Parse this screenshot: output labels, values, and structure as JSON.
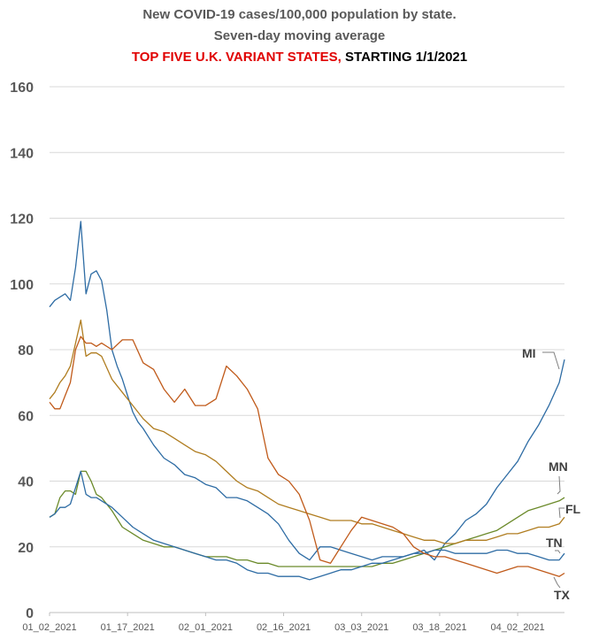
{
  "chart_data": {
    "type": "line",
    "title": "New COVID-19 cases/100,000 population by state.",
    "subtitle": "Seven-day moving average",
    "subtitle2_red": "TOP FIVE U.K. VARIANT STATES,",
    "subtitle2_black": " STARTING 1/1/2021",
    "xlabel": "",
    "ylabel": "",
    "ylim": [
      0,
      160
    ],
    "yticks": [
      "0",
      "20",
      "40",
      "60",
      "80",
      "100",
      "120",
      "140",
      "160"
    ],
    "x_tick_labels": [
      "01_02_2021",
      "01_17_2021",
      "02_01_2021",
      "02_16_2021",
      "03_03_2021",
      "03_18_2021",
      "04_02_2021"
    ],
    "x_day_range": [
      0,
      99
    ],
    "grid": true,
    "series": [
      {
        "name": "MI",
        "color": "#2e6ca4",
        "x": [
          0,
          1,
          2,
          3,
          4,
          5,
          6,
          7,
          8,
          9,
          10,
          11,
          12,
          13,
          14,
          15,
          16,
          17,
          18,
          20,
          22,
          24,
          26,
          28,
          30,
          32,
          34,
          36,
          38,
          40,
          42,
          44,
          46,
          48,
          50,
          52,
          54,
          56,
          58,
          60,
          62,
          64,
          66,
          68,
          70,
          72,
          74,
          76,
          78,
          80,
          82,
          84,
          86,
          88,
          90,
          92,
          94,
          96,
          98,
          99
        ],
        "y": [
          93,
          95,
          96,
          97,
          95,
          105,
          119,
          97,
          103,
          104,
          101,
          92,
          80,
          75,
          71,
          66,
          61,
          58,
          56,
          51,
          47,
          45,
          42,
          41,
          39,
          38,
          35,
          35,
          34,
          32,
          30,
          27,
          22,
          18,
          16,
          20,
          20,
          19,
          18,
          17,
          16,
          17,
          17,
          17,
          18,
          19,
          16,
          21,
          24,
          28,
          30,
          33,
          38,
          42,
          46,
          52,
          57,
          63,
          70,
          77
        ]
      },
      {
        "name": "MN",
        "color": "#6b8a2a",
        "x": [
          0,
          1,
          2,
          3,
          4,
          5,
          6,
          7,
          8,
          9,
          10,
          12,
          14,
          16,
          18,
          20,
          22,
          24,
          26,
          28,
          30,
          32,
          34,
          36,
          38,
          40,
          42,
          44,
          46,
          48,
          50,
          52,
          54,
          56,
          58,
          60,
          62,
          64,
          66,
          68,
          70,
          72,
          74,
          76,
          78,
          80,
          82,
          84,
          86,
          88,
          90,
          92,
          94,
          96,
          98,
          99
        ],
        "y": [
          29,
          30,
          35,
          37,
          37,
          36,
          43,
          43,
          40,
          36,
          35,
          31,
          26,
          24,
          22,
          21,
          20,
          20,
          19,
          18,
          17,
          17,
          17,
          16,
          16,
          15,
          15,
          14,
          14,
          14,
          14,
          14,
          14,
          14,
          14,
          14,
          14,
          15,
          15,
          16,
          17,
          18,
          19,
          20,
          21,
          22,
          23,
          24,
          25,
          27,
          29,
          31,
          32,
          33,
          34,
          35
        ]
      },
      {
        "name": "FL",
        "color": "#b07d20",
        "x": [
          0,
          1,
          2,
          3,
          4,
          5,
          6,
          7,
          8,
          9,
          10,
          12,
          14,
          16,
          18,
          20,
          22,
          24,
          26,
          28,
          30,
          32,
          34,
          36,
          38,
          40,
          42,
          44,
          46,
          48,
          50,
          52,
          54,
          56,
          58,
          60,
          62,
          64,
          66,
          68,
          70,
          72,
          74,
          76,
          78,
          80,
          82,
          84,
          86,
          88,
          90,
          92,
          94,
          96,
          98,
          99
        ],
        "y": [
          65,
          67,
          70,
          72,
          75,
          82,
          89,
          78,
          79,
          79,
          78,
          71,
          67,
          63,
          59,
          56,
          55,
          53,
          51,
          49,
          48,
          46,
          43,
          40,
          38,
          37,
          35,
          33,
          32,
          31,
          30,
          29,
          28,
          28,
          28,
          27,
          27,
          26,
          25,
          24,
          23,
          22,
          22,
          21,
          21,
          22,
          22,
          22,
          23,
          24,
          24,
          25,
          26,
          26,
          27,
          29
        ]
      },
      {
        "name": "TN",
        "color": "#2e6ca4",
        "x": [
          0,
          1,
          2,
          3,
          4,
          5,
          6,
          7,
          8,
          9,
          10,
          12,
          14,
          16,
          18,
          20,
          22,
          24,
          26,
          28,
          30,
          32,
          34,
          36,
          38,
          40,
          42,
          44,
          46,
          48,
          50,
          52,
          54,
          56,
          58,
          60,
          62,
          64,
          66,
          68,
          70,
          72,
          74,
          76,
          78,
          80,
          82,
          84,
          86,
          88,
          90,
          92,
          94,
          96,
          98,
          99
        ],
        "y": [
          29,
          30,
          32,
          32,
          33,
          38,
          43,
          36,
          35,
          35,
          34,
          32,
          29,
          26,
          24,
          22,
          21,
          20,
          19,
          18,
          17,
          16,
          16,
          15,
          13,
          12,
          12,
          11,
          11,
          11,
          10,
          11,
          12,
          13,
          13,
          14,
          15,
          15,
          16,
          17,
          18,
          18,
          19,
          19,
          18,
          18,
          18,
          18,
          19,
          19,
          18,
          18,
          17,
          16,
          16,
          18
        ]
      },
      {
        "name": "TX",
        "color": "#c05a1a",
        "x": [
          0,
          1,
          2,
          3,
          4,
          5,
          6,
          7,
          8,
          9,
          10,
          12,
          14,
          16,
          18,
          20,
          22,
          24,
          26,
          28,
          30,
          32,
          34,
          36,
          38,
          40,
          42,
          44,
          46,
          48,
          50,
          52,
          54,
          56,
          58,
          60,
          62,
          64,
          66,
          68,
          70,
          72,
          74,
          76,
          78,
          80,
          82,
          84,
          86,
          88,
          90,
          92,
          94,
          96,
          98,
          99
        ],
        "y": [
          64,
          62,
          62,
          66,
          70,
          80,
          84,
          82,
          82,
          81,
          82,
          80,
          83,
          83,
          76,
          74,
          68,
          64,
          68,
          63,
          63,
          65,
          75,
          72,
          68,
          62,
          47,
          42,
          40,
          36,
          28,
          16,
          15,
          20,
          25,
          29,
          28,
          27,
          26,
          24,
          20,
          18,
          17,
          17,
          16,
          15,
          14,
          13,
          12,
          13,
          14,
          14,
          13,
          12,
          11,
          12
        ]
      }
    ]
  }
}
